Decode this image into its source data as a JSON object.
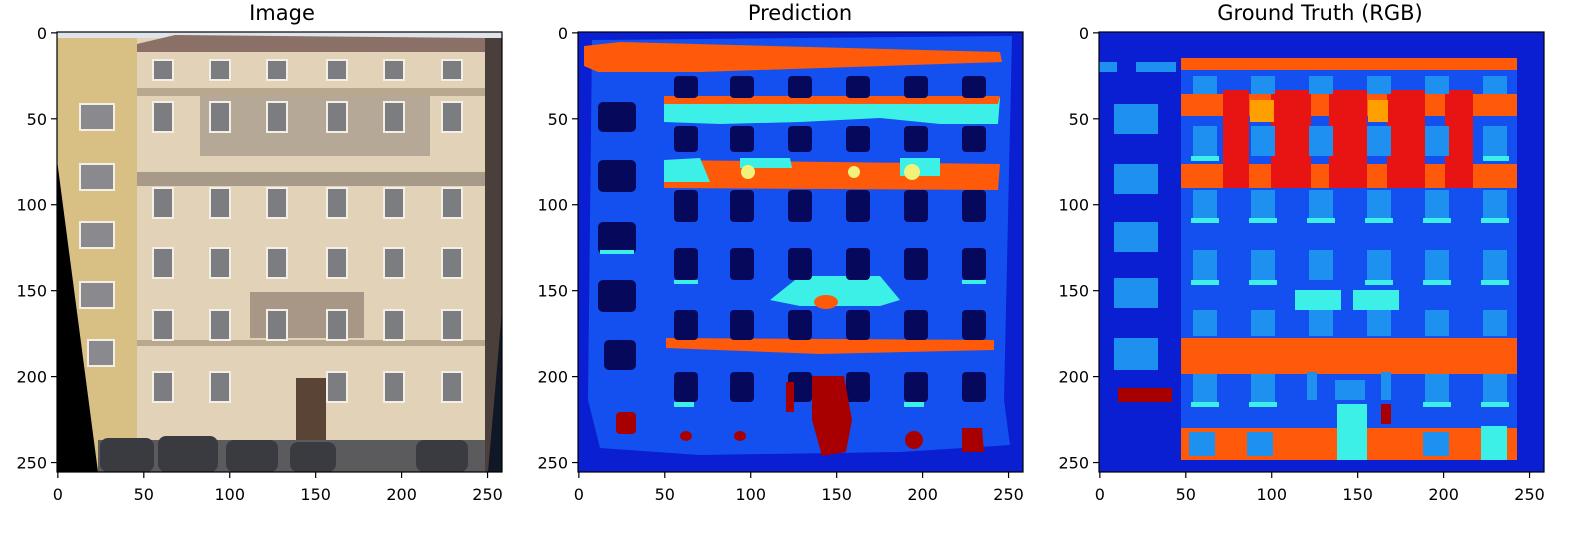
{
  "figure": {
    "panels": [
      {
        "id": "image",
        "title": "Image",
        "xticks": [
          "0",
          "50",
          "100",
          "150",
          "200",
          "250"
        ],
        "yticks": [
          "0",
          "50",
          "100",
          "150",
          "200",
          "250"
        ]
      },
      {
        "id": "prediction",
        "title": "Prediction",
        "xticks": [
          "0",
          "50",
          "100",
          "150",
          "200",
          "250"
        ],
        "yticks": [
          "0",
          "50",
          "100",
          "150",
          "200",
          "250"
        ]
      },
      {
        "id": "ground-truth",
        "title": "Ground Truth (RGB)",
        "xticks": [
          "0",
          "50",
          "100",
          "150",
          "200",
          "250"
        ],
        "yticks": [
          "0",
          "50",
          "100",
          "150",
          "200",
          "250"
        ]
      }
    ],
    "axis_range": [
      0,
      256
    ],
    "colors": {
      "background": "#0a1ed2",
      "facade": "#1450f0",
      "window": "#06085c",
      "window_gt": "#1e90f0",
      "molding": "#ff5a0a",
      "balcony": "#3cf0e8",
      "cornice": "#f2f27a",
      "door": "#a80000",
      "pillar": "#e81414",
      "shop": "#ffa000",
      "photo_wall": "#e6d2b4",
      "photo_window": "#8c8c8c"
    }
  }
}
